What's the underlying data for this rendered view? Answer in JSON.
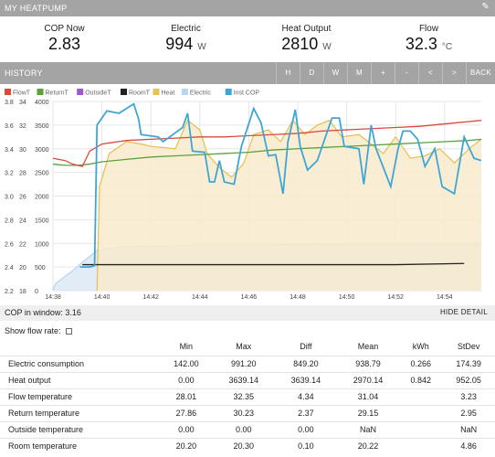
{
  "header": {
    "title": "MY HEATPUMP"
  },
  "stats": [
    {
      "label": "COP Now",
      "value": "2.83",
      "unit": ""
    },
    {
      "label": "Electric",
      "value": "994",
      "unit": "W"
    },
    {
      "label": "Heat Output",
      "value": "2810",
      "unit": "W"
    },
    {
      "label": "Flow",
      "value": "32.3",
      "unit": "°C"
    }
  ],
  "history": {
    "title": "HISTORY",
    "buttons": [
      "H",
      "D",
      "W",
      "M",
      "+",
      "-",
      "<",
      ">",
      "BACK"
    ]
  },
  "chart_data": {
    "type": "line",
    "legend_position": "top-left",
    "grid": true,
    "x_ticks": [
      "14:38",
      "14:40",
      "14:42",
      "14:44",
      "14:46",
      "14:48",
      "14:50",
      "14:52",
      "14:54"
    ],
    "x_range_minutes": [
      0,
      17.5
    ],
    "axes": {
      "cop": {
        "ticks": [
          "3.8",
          "3.6",
          "3.4",
          "3.2",
          "3.0",
          "2.8",
          "2.6",
          "2.4",
          "2.2"
        ],
        "range": [
          2.2,
          3.8
        ]
      },
      "temp": {
        "ticks": [
          "34",
          "32",
          "30",
          "28",
          "26",
          "24",
          "22",
          "20",
          "18"
        ],
        "range": [
          18,
          34
        ]
      },
      "power": {
        "ticks": [
          "4000",
          "3500",
          "3000",
          "2500",
          "2000",
          "1500",
          "1000",
          "500",
          "0"
        ],
        "range": [
          0,
          4000
        ]
      }
    },
    "series": [
      {
        "name": "FlowT",
        "color": "#d84a3b",
        "axis": "temp",
        "points": [
          [
            0,
            29.2
          ],
          [
            0.5,
            29.0
          ],
          [
            0.8,
            28.7
          ],
          [
            1.2,
            28.5
          ],
          [
            1.5,
            29.8
          ],
          [
            2,
            30.4
          ],
          [
            3,
            30.7
          ],
          [
            4,
            30.8
          ],
          [
            5,
            30.9
          ],
          [
            6,
            31.0
          ],
          [
            7,
            31.0
          ],
          [
            8,
            31.1
          ],
          [
            9,
            31.2
          ],
          [
            10,
            31.3
          ],
          [
            11,
            31.5
          ],
          [
            12,
            31.6
          ],
          [
            13,
            31.7
          ],
          [
            14,
            31.8
          ],
          [
            15,
            31.9
          ],
          [
            16,
            32.1
          ],
          [
            17,
            32.3
          ],
          [
            17.5,
            32.4
          ]
        ]
      },
      {
        "name": "ReturnT",
        "color": "#5aa03c",
        "axis": "temp",
        "points": [
          [
            0,
            28.7
          ],
          [
            0.5,
            28.6
          ],
          [
            1,
            28.6
          ],
          [
            1.5,
            28.7
          ],
          [
            2,
            28.9
          ],
          [
            3,
            29.1
          ],
          [
            4,
            29.3
          ],
          [
            5,
            29.4
          ],
          [
            6,
            29.5
          ],
          [
            7,
            29.6
          ],
          [
            8,
            29.7
          ],
          [
            9,
            29.9
          ],
          [
            10,
            30.0
          ],
          [
            11,
            30.1
          ],
          [
            12,
            30.2
          ],
          [
            13,
            30.3
          ],
          [
            14,
            30.4
          ],
          [
            15,
            30.5
          ],
          [
            16,
            30.6
          ],
          [
            17,
            30.7
          ],
          [
            17.5,
            30.8
          ]
        ]
      },
      {
        "name": "OutsideT",
        "color": "#9b59d0",
        "axis": "temp",
        "points": []
      },
      {
        "name": "RoomT",
        "color": "#222222",
        "axis": "temp",
        "points": [
          [
            1.2,
            20.2
          ],
          [
            5,
            20.2
          ],
          [
            8,
            20.2
          ],
          [
            10,
            20.2
          ],
          [
            12,
            20.2
          ],
          [
            14,
            20.2
          ],
          [
            16.8,
            20.3
          ]
        ]
      },
      {
        "name": "Heat",
        "color": "#e7c25a",
        "fill": "#f8ebcb",
        "axis": "power",
        "points": [
          [
            1.8,
            0
          ],
          [
            1.9,
            2200
          ],
          [
            2.3,
            2900
          ],
          [
            3,
            3150
          ],
          [
            3.6,
            3100
          ],
          [
            4,
            3050
          ],
          [
            5,
            3000
          ],
          [
            5.5,
            3600
          ],
          [
            6,
            3400
          ],
          [
            6.3,
            2900
          ],
          [
            6.8,
            2600
          ],
          [
            7.3,
            2400
          ],
          [
            7.8,
            2700
          ],
          [
            8.2,
            3300
          ],
          [
            8.8,
            3400
          ],
          [
            9.3,
            3150
          ],
          [
            9.8,
            3600
          ],
          [
            10.3,
            3300
          ],
          [
            10.8,
            3500
          ],
          [
            11.3,
            3600
          ],
          [
            11.8,
            3250
          ],
          [
            12.5,
            3300
          ],
          [
            13,
            3100
          ],
          [
            13.5,
            2900
          ],
          [
            14,
            3250
          ],
          [
            14.6,
            2800
          ],
          [
            15.2,
            2850
          ],
          [
            15.8,
            3000
          ],
          [
            16.4,
            2700
          ],
          [
            17,
            3000
          ],
          [
            17.5,
            3200
          ]
        ]
      },
      {
        "name": "Electric",
        "color": "#b9d7ee",
        "fill": "#dde9f4",
        "axis": "power",
        "points": [
          [
            0,
            0
          ],
          [
            0.1,
            150
          ],
          [
            0.8,
            420
          ],
          [
            1.2,
            600
          ],
          [
            1.8,
            850
          ],
          [
            3,
            930
          ],
          [
            6,
            960
          ],
          [
            10,
            975
          ],
          [
            14,
            985
          ],
          [
            17.5,
            994
          ]
        ]
      },
      {
        "name": "Inst COP",
        "color": "#3ea6d6",
        "axis": "cop",
        "points": [
          [
            1.1,
            2.4
          ],
          [
            1.5,
            2.4
          ],
          [
            1.7,
            2.41
          ],
          [
            1.8,
            3.6
          ],
          [
            2.2,
            3.72
          ],
          [
            2.7,
            3.7
          ],
          [
            3.3,
            3.78
          ],
          [
            3.5,
            3.65
          ],
          [
            3.6,
            3.52
          ],
          [
            4.3,
            3.5
          ],
          [
            4.5,
            3.46
          ],
          [
            5.3,
            3.58
          ],
          [
            5.5,
            3.7
          ],
          [
            5.7,
            3.38
          ],
          [
            6.2,
            3.37
          ],
          [
            6.4,
            3.12
          ],
          [
            6.6,
            3.12
          ],
          [
            6.8,
            3.3
          ],
          [
            7,
            3.12
          ],
          [
            7.4,
            3.1
          ],
          [
            7.7,
            3.42
          ],
          [
            8.2,
            3.74
          ],
          [
            8.5,
            3.62
          ],
          [
            8.8,
            3.34
          ],
          [
            9.1,
            3.35
          ],
          [
            9.4,
            3.02
          ],
          [
            9.6,
            3.46
          ],
          [
            9.9,
            3.73
          ],
          [
            10.1,
            3.42
          ],
          [
            10.4,
            3.22
          ],
          [
            10.8,
            3.3
          ],
          [
            11.4,
            3.66
          ],
          [
            11.7,
            3.66
          ],
          [
            11.9,
            3.42
          ],
          [
            12.5,
            3.4
          ],
          [
            12.7,
            3.1
          ],
          [
            13,
            3.6
          ],
          [
            13.2,
            3.4
          ],
          [
            13.8,
            3.08
          ],
          [
            14.1,
            3.4
          ],
          [
            14.3,
            3.55
          ],
          [
            14.6,
            3.55
          ],
          [
            14.9,
            3.48
          ],
          [
            15.2,
            3.25
          ],
          [
            15.6,
            3.4
          ],
          [
            15.9,
            3.08
          ],
          [
            16.4,
            3.02
          ],
          [
            16.8,
            3.5
          ],
          [
            17.2,
            3.32
          ],
          [
            17.5,
            3.3
          ]
        ]
      }
    ]
  },
  "cop_window": {
    "label": "COP in window:",
    "value": "3.16"
  },
  "hide_detail": "HIDE DETAIL",
  "flow_rate": {
    "label": "Show flow rate:"
  },
  "table": {
    "columns": [
      "",
      "Min",
      "Max",
      "Diff",
      "Mean",
      "kWh",
      "StDev"
    ],
    "rows": [
      [
        "Electric consumption",
        "142.00",
        "991.20",
        "849.20",
        "938.79",
        "0.266",
        "174.39"
      ],
      [
        "Heat output",
        "0.00",
        "3639.14",
        "3639.14",
        "2970.14",
        "0.842",
        "952.05"
      ],
      [
        "Flow temperature",
        "28.01",
        "32.35",
        "4.34",
        "31.04",
        "",
        "3.23"
      ],
      [
        "Return temperature",
        "27.86",
        "30.23",
        "2.37",
        "29.15",
        "",
        "2.95"
      ],
      [
        "Outside temperature",
        "0.00",
        "0.00",
        "0.00",
        "NaN",
        "",
        "NaN"
      ],
      [
        "Room temperature",
        "20.20",
        "20.30",
        "0.10",
        "20.22",
        "",
        "4.86"
      ]
    ]
  }
}
